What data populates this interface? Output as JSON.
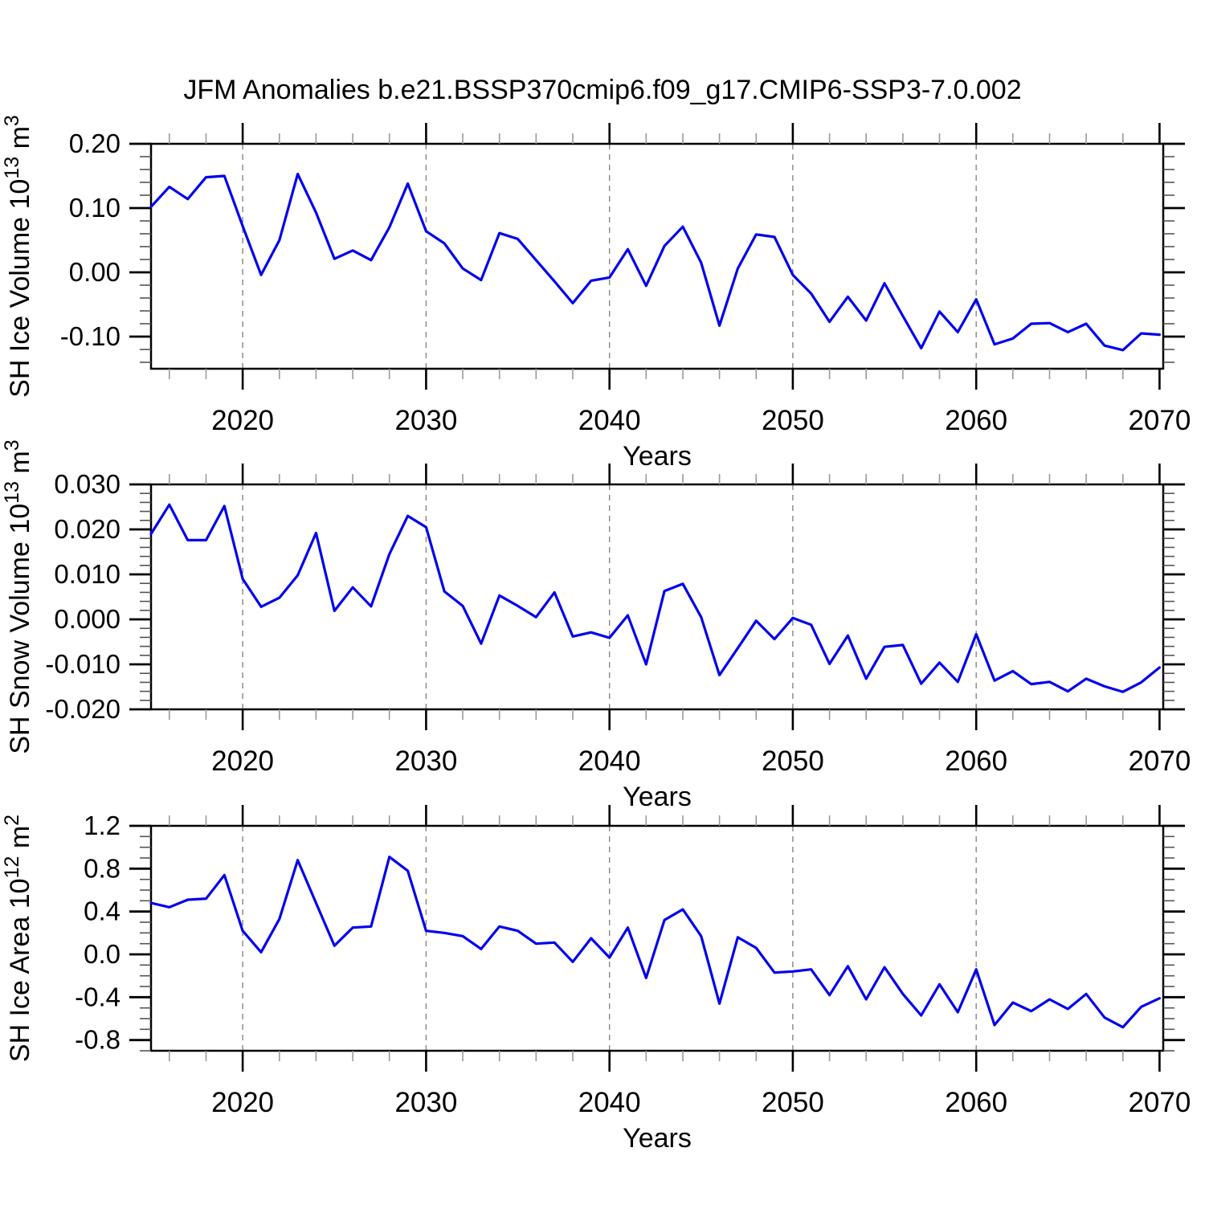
{
  "title": "JFM Anomalies b.e21.BSSP370cmip6.f09_g17.CMIP6-SSP3-7.0.002",
  "colors": {
    "line": "#0000ee",
    "grid": "#878787",
    "frame": "#000000",
    "major_tick": "#000000",
    "x_minor_tick": "#9a9a9a",
    "y_minor_tick": "#555555",
    "background": "#ffffff"
  },
  "chart_data": {
    "type": "line",
    "title": "JFM Anomalies b.e21.BSSP370cmip6.f09_g17.CMIP6-SSP3-7.0.002",
    "xlabel": "Years",
    "x_start": 2015,
    "x_step": 1,
    "xlim": [
      2015,
      2070.2
    ],
    "x_tick_labels": [
      "2020",
      "2030",
      "2040",
      "2050",
      "2060",
      "2070"
    ],
    "x_minor_step_years": 2,
    "grid_years": [
      2020,
      2030,
      2040,
      2050,
      2060
    ],
    "legend": "none",
    "grid": "vertical-dashed-decades",
    "panels": [
      {
        "id": "ice-volume",
        "ylabel_text": "SH Ice Volume 10¹³ m³",
        "ylabel_parts": {
          "base1": "SH Ice Volume 10",
          "exp1": "13",
          "base2": " m",
          "exp2": "3"
        },
        "ylim": [
          -0.15,
          0.2
        ],
        "y_minor_step": 0.02,
        "yticks": [
          {
            "value": 0.2,
            "label": "0.20"
          },
          {
            "value": 0.1,
            "label": "0.10"
          },
          {
            "value": 0.0,
            "label": "0.00"
          },
          {
            "value": -0.1,
            "label": "-0.10"
          }
        ],
        "values": [
          0.102,
          0.133,
          0.114,
          0.148,
          0.15,
          0.072,
          -0.004,
          0.05,
          0.153,
          0.093,
          0.021,
          0.034,
          0.019,
          0.07,
          0.138,
          0.064,
          0.045,
          0.006,
          -0.012,
          0.061,
          0.052,
          0.019,
          -0.014,
          -0.048,
          -0.013,
          -0.008,
          0.036,
          -0.021,
          0.041,
          0.071,
          0.015,
          -0.083,
          0.006,
          0.059,
          0.055,
          -0.004,
          -0.033,
          -0.077,
          -0.038,
          -0.075,
          -0.017,
          -0.068,
          -0.118,
          -0.061,
          -0.093,
          -0.042,
          -0.112,
          -0.103,
          -0.08,
          -0.079,
          -0.093,
          -0.08,
          -0.114,
          -0.121,
          -0.095,
          -0.097
        ]
      },
      {
        "id": "snow-volume",
        "ylabel_text": "SH Snow Volume 10¹³ m³",
        "ylabel_parts": {
          "base1": "SH Snow Volume 10",
          "exp1": "13",
          "base2": " m",
          "exp2": "3"
        },
        "ylim": [
          -0.02,
          0.03
        ],
        "y_minor_step": 0.002,
        "yticks": [
          {
            "value": 0.03,
            "label": "0.030"
          },
          {
            "value": 0.02,
            "label": "0.020"
          },
          {
            "value": 0.01,
            "label": "0.010"
          },
          {
            "value": 0.0,
            "label": "0.000"
          },
          {
            "value": -0.01,
            "label": "-0.010"
          },
          {
            "value": -0.02,
            "label": "-0.020"
          }
        ],
        "values": [
          0.019,
          0.0255,
          0.0176,
          0.0176,
          0.0252,
          0.009,
          0.0028,
          0.0048,
          0.0098,
          0.0192,
          0.0019,
          0.0071,
          0.0029,
          0.0145,
          0.023,
          0.0205,
          0.0062,
          0.003,
          -0.0054,
          0.0053,
          0.003,
          0.0005,
          0.006,
          -0.0038,
          -0.0029,
          -0.0041,
          0.0009,
          -0.01,
          0.0063,
          0.0079,
          0.0005,
          -0.0124,
          -0.0064,
          -0.0003,
          -0.0044,
          0.0003,
          -0.0012,
          -0.0099,
          -0.0036,
          -0.0132,
          -0.0061,
          -0.0057,
          -0.0143,
          -0.0096,
          -0.0139,
          -0.0033,
          -0.0136,
          -0.0115,
          -0.0144,
          -0.0139,
          -0.016,
          -0.0132,
          -0.0149,
          -0.0161,
          -0.014,
          -0.0107
        ]
      },
      {
        "id": "ice-area",
        "ylabel_text": "SH Ice Area 10¹² m²",
        "ylabel_parts": {
          "base1": "SH Ice Area 10",
          "exp1": "12",
          "base2": " m",
          "exp2": "2"
        },
        "ylim": [
          -0.9,
          1.2
        ],
        "y_minor_step": 0.1,
        "yticks": [
          {
            "value": 1.2,
            "label": "1.2"
          },
          {
            "value": 0.8,
            "label": "0.8"
          },
          {
            "value": 0.4,
            "label": "0.4"
          },
          {
            "value": 0.0,
            "label": "0.0"
          },
          {
            "value": -0.4,
            "label": "-0.4"
          },
          {
            "value": -0.8,
            "label": "-0.8"
          }
        ],
        "values": [
          0.48,
          0.44,
          0.51,
          0.52,
          0.74,
          0.22,
          0.02,
          0.33,
          0.88,
          0.48,
          0.08,
          0.25,
          0.26,
          0.91,
          0.78,
          0.22,
          0.2,
          0.17,
          0.05,
          0.26,
          0.22,
          0.1,
          0.11,
          -0.07,
          0.15,
          -0.03,
          0.25,
          -0.22,
          0.32,
          0.42,
          0.17,
          -0.46,
          0.16,
          0.06,
          -0.17,
          -0.16,
          -0.14,
          -0.38,
          -0.11,
          -0.42,
          -0.12,
          -0.37,
          -0.57,
          -0.28,
          -0.54,
          -0.14,
          -0.66,
          -0.45,
          -0.53,
          -0.42,
          -0.51,
          -0.37,
          -0.59,
          -0.68,
          -0.49,
          -0.41
        ]
      }
    ]
  }
}
